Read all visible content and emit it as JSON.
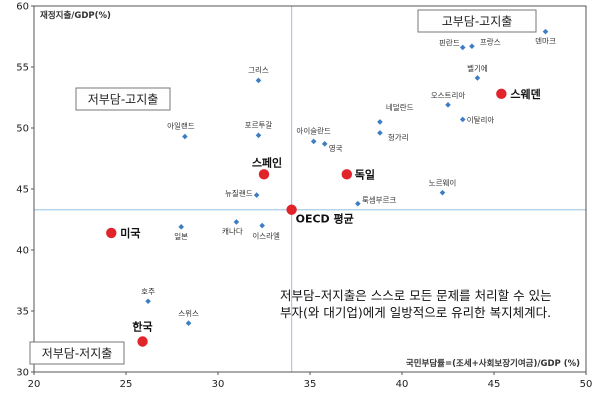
{
  "chart_data": {
    "type": "scatter",
    "title": "",
    "xlabel": "국민부담률=(조세+사회보장기여금)/GDP (%)",
    "ylabel": "재정지출/GDP(%)",
    "xlim": [
      20,
      50
    ],
    "ylim": [
      30,
      60
    ],
    "xticks": [
      20,
      25,
      30,
      35,
      40,
      45,
      50
    ],
    "yticks": [
      30,
      35,
      40,
      45,
      50,
      55,
      60
    ],
    "grid": false,
    "reference_lines": {
      "x": 34,
      "y": 43.3
    },
    "colors": {
      "regular": "#3d7dc4",
      "highlight": "#e0242a",
      "reference": "#a9cbe6"
    },
    "points": [
      {
        "label": "덴마크",
        "x": 47.8,
        "y": 57.9,
        "highlight": false
      },
      {
        "label": "핀란드",
        "x": 43.3,
        "y": 56.6,
        "highlight": false
      },
      {
        "label": "프랑스",
        "x": 43.8,
        "y": 56.7,
        "highlight": false
      },
      {
        "label": "벨기에",
        "x": 44.1,
        "y": 54.1,
        "highlight": false
      },
      {
        "label": "스웨덴",
        "x": 45.4,
        "y": 52.8,
        "highlight": true
      },
      {
        "label": "오스트리아",
        "x": 42.5,
        "y": 51.9,
        "highlight": false
      },
      {
        "label": "이탈리아",
        "x": 43.3,
        "y": 50.7,
        "highlight": false
      },
      {
        "label": "네덜란드",
        "x": 38.8,
        "y": 50.5,
        "highlight": false
      },
      {
        "label": "헝가리",
        "x": 38.8,
        "y": 49.6,
        "highlight": false
      },
      {
        "label": "그리스",
        "x": 32.2,
        "y": 53.9,
        "highlight": false
      },
      {
        "label": "포르투갈",
        "x": 32.2,
        "y": 49.4,
        "highlight": false
      },
      {
        "label": "아이슬란드",
        "x": 35.2,
        "y": 48.9,
        "highlight": false
      },
      {
        "label": "영국",
        "x": 35.8,
        "y": 48.7,
        "highlight": false
      },
      {
        "label": "아일랜드",
        "x": 28.2,
        "y": 49.3,
        "highlight": false
      },
      {
        "label": "스페인",
        "x": 32.5,
        "y": 46.2,
        "highlight": true
      },
      {
        "label": "독일",
        "x": 37.0,
        "y": 46.2,
        "highlight": true
      },
      {
        "label": "뉴질랜드",
        "x": 32.1,
        "y": 44.5,
        "highlight": false
      },
      {
        "label": "노르웨이",
        "x": 42.2,
        "y": 44.7,
        "highlight": false
      },
      {
        "label": "룩셈부르크",
        "x": 37.6,
        "y": 43.8,
        "highlight": false
      },
      {
        "label": "OECD 평균",
        "x": 34.0,
        "y": 43.3,
        "highlight": true
      },
      {
        "label": "일본",
        "x": 28.0,
        "y": 41.9,
        "highlight": false
      },
      {
        "label": "캐나다",
        "x": 31.0,
        "y": 42.3,
        "highlight": false
      },
      {
        "label": "이스라엘",
        "x": 32.4,
        "y": 42.0,
        "highlight": false
      },
      {
        "label": "미국",
        "x": 24.2,
        "y": 41.4,
        "highlight": true
      },
      {
        "label": "호주",
        "x": 26.2,
        "y": 35.8,
        "highlight": false
      },
      {
        "label": "스위스",
        "x": 28.4,
        "y": 34.0,
        "highlight": false
      },
      {
        "label": "한국",
        "x": 25.9,
        "y": 32.5,
        "highlight": true
      }
    ],
    "quadrant_labels": {
      "top_right": "고부담-고지출",
      "top_left": "저부담-고지출",
      "bottom_left": "저부담-저지출"
    }
  },
  "annotation": {
    "line1": "저부담–저지출은 스스로 모든 문제를 처리할 수 있는",
    "line2": "부자(와 대기업)에게 일방적으로 유리한 복지체계다."
  }
}
